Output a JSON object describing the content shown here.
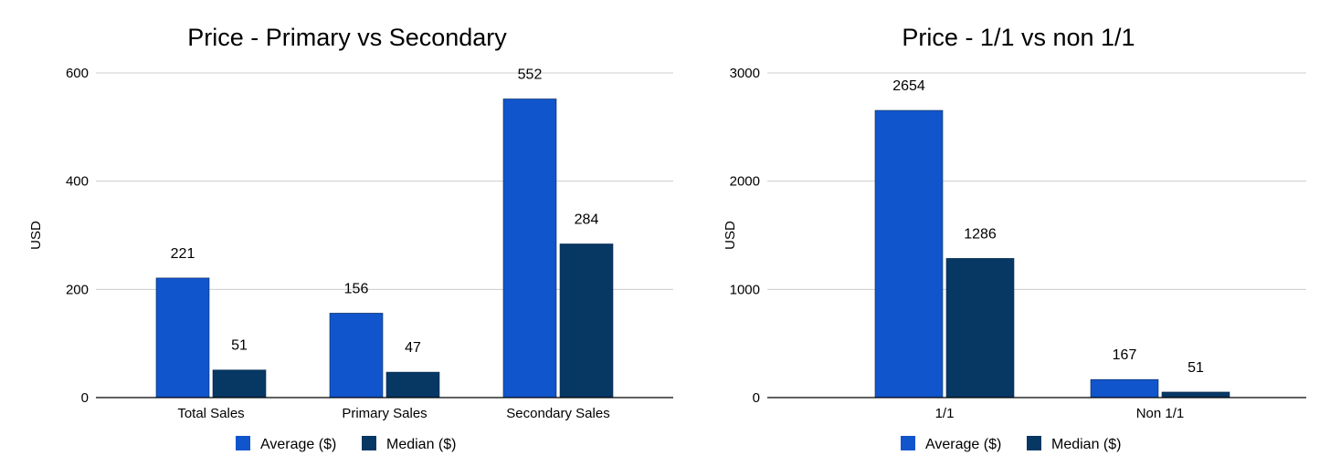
{
  "chart_data": [
    {
      "type": "bar",
      "title": "Price - Primary vs Secondary",
      "xlabel": "",
      "ylabel": "USD",
      "ylim": [
        0,
        600
      ],
      "yticks": [
        0,
        200,
        400,
        600
      ],
      "categories": [
        "Total Sales",
        "Primary Sales",
        "Secondary Sales"
      ],
      "series": [
        {
          "name": "Average ($)",
          "color": "#1155cc",
          "values": [
            221,
            156,
            552
          ]
        },
        {
          "name": "Median ($)",
          "color": "#073763",
          "values": [
            51,
            47,
            284
          ]
        }
      ],
      "legend": "bottom",
      "grid": true
    },
    {
      "type": "bar",
      "title": "Price - 1/1 vs non 1/1",
      "xlabel": "",
      "ylabel": "USD",
      "ylim": [
        0,
        3000
      ],
      "yticks": [
        0,
        1000,
        2000,
        3000
      ],
      "categories": [
        "1/1",
        "Non 1/1"
      ],
      "series": [
        {
          "name": "Average ($)",
          "color": "#1155cc",
          "values": [
            2654,
            167
          ]
        },
        {
          "name": "Median ($)",
          "color": "#073763",
          "values": [
            1286,
            51
          ]
        }
      ],
      "legend": "bottom",
      "grid": true
    }
  ]
}
